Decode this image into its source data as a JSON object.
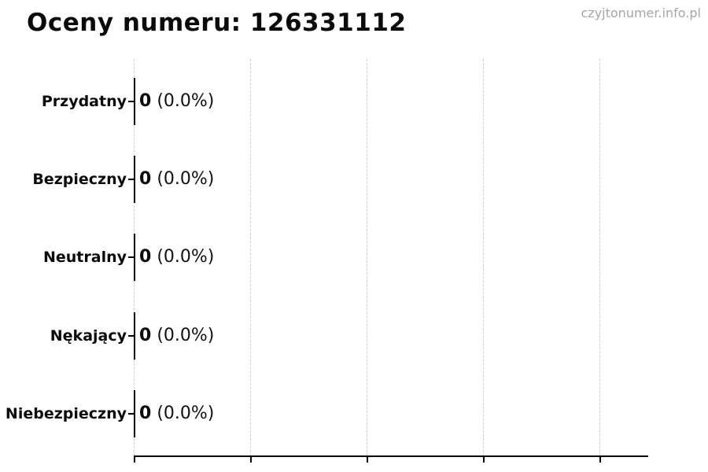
{
  "header": {
    "title": "Oceny numeru: 126331112",
    "watermark": "czyjtonumer.info.pl"
  },
  "chart_data": {
    "type": "bar",
    "orientation": "horizontal",
    "title": "Oceny numeru: 126331112",
    "categories": [
      "Przydatny",
      "Bezpieczny",
      "Neutralny",
      "Nękający",
      "Niebezpieczny"
    ],
    "values": [
      0,
      0,
      0,
      0,
      0
    ],
    "percentages": [
      0.0,
      0.0,
      0.0,
      0.0,
      0.0
    ],
    "rows": [
      {
        "label": "Przydatny",
        "value": "0",
        "pct": "(0.0%)"
      },
      {
        "label": "Bezpieczny",
        "value": "0",
        "pct": "(0.0%)"
      },
      {
        "label": "Neutralny",
        "value": "0",
        "pct": "(0.0%)"
      },
      {
        "label": "Nękający",
        "value": "0",
        "pct": "(0.0%)"
      },
      {
        "label": "Niebezpieczny",
        "value": "0",
        "pct": "(0.0%)"
      }
    ],
    "xlabel": "",
    "ylabel": "",
    "x_tick_count": 5,
    "x_tick_labels": [],
    "grid": true,
    "grid_style": "dashed-vertical",
    "legend": false,
    "bar_edge_color": "#000000"
  },
  "colors": {
    "background": "#ffffff",
    "text": "#0a0a0a",
    "grid": "#cfcfcf",
    "axis": "#000000",
    "watermark": "#a6a6a6"
  }
}
